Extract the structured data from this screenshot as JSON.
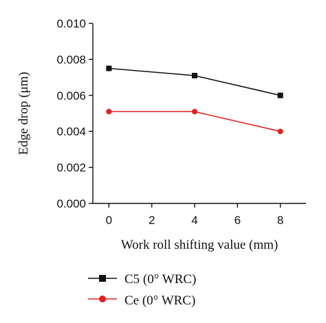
{
  "chart_data": {
    "type": "line",
    "xlabel": "Work roll shifting value (mm)",
    "ylabel": "Edge drop (μm)",
    "xlim": [
      -0.75,
      9.2
    ],
    "ylim": [
      0,
      0.01
    ],
    "x_ticks": [
      "0",
      "2",
      "4",
      "6",
      "8"
    ],
    "y_ticks": [
      "0.000",
      "0.002",
      "0.004",
      "0.006",
      "0.008",
      "0.010"
    ],
    "grid": false,
    "legend_position": "bottom-left",
    "series": [
      {
        "name": "C5 (0° WRC)",
        "color": "#111111",
        "marker": "square",
        "x": [
          0,
          4,
          8
        ],
        "y": [
          0.0075,
          0.0071,
          0.006
        ]
      },
      {
        "name": "Ce (0° WRC)",
        "color": "#e02020",
        "marker": "circle",
        "x": [
          0,
          4,
          8
        ],
        "y": [
          0.0051,
          0.0051,
          0.004
        ]
      }
    ]
  }
}
